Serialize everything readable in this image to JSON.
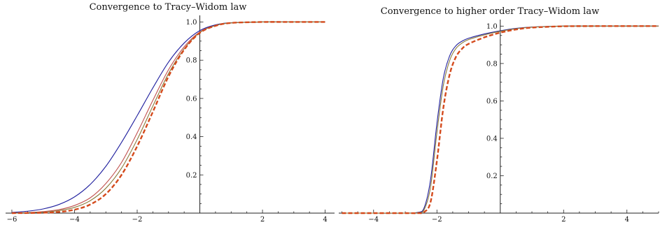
{
  "chart_data": [
    {
      "type": "line",
      "title": "Convergence to Tracy–Widom law",
      "xlabel": "",
      "ylabel": "",
      "xlim": [
        -6.2,
        4.3
      ],
      "ylim": [
        0,
        1.02
      ],
      "x_ticks": [
        -6,
        -4,
        -2,
        2,
        4
      ],
      "x_tick_labels": [
        "−6",
        "−4",
        "−2",
        "2",
        "4"
      ],
      "y_ticks": [
        0.2,
        0.4,
        0.6,
        0.8,
        1.0
      ],
      "y_tick_labels": [
        "0.2",
        "0.4",
        "0.6",
        "0.8",
        "1.0"
      ],
      "grid": false,
      "x": [
        -6.0,
        -5.5,
        -5.0,
        -4.5,
        -4.0,
        -3.5,
        -3.0,
        -2.5,
        -2.0,
        -1.5,
        -1.0,
        -0.5,
        0.0,
        0.5,
        1.0,
        2.0,
        3.0,
        4.0
      ],
      "series": [
        {
          "color": "#1f1f9e",
          "dashed": false,
          "values": [
            0.004,
            0.01,
            0.022,
            0.045,
            0.085,
            0.15,
            0.245,
            0.37,
            0.51,
            0.655,
            0.79,
            0.89,
            0.955,
            0.985,
            0.996,
            1.0,
            1.0,
            1.0
          ]
        },
        {
          "color": "#c0504d",
          "dashed": false,
          "values": [
            0.001,
            0.003,
            0.008,
            0.018,
            0.04,
            0.08,
            0.155,
            0.265,
            0.42,
            0.59,
            0.75,
            0.87,
            0.948,
            0.982,
            0.995,
            1.0,
            1.0,
            1.0
          ]
        },
        {
          "color": "#8a7a3a",
          "dashed": false,
          "values": [
            0.0008,
            0.002,
            0.005,
            0.013,
            0.03,
            0.065,
            0.13,
            0.235,
            0.385,
            0.56,
            0.73,
            0.86,
            0.945,
            0.981,
            0.995,
            1.0,
            1.0,
            1.0
          ]
        },
        {
          "color": "#d44a1c",
          "dashed": true,
          "values": [
            0.0,
            0.0005,
            0.002,
            0.006,
            0.018,
            0.045,
            0.1,
            0.2,
            0.35,
            0.53,
            0.715,
            0.855,
            0.943,
            0.98,
            0.995,
            1.0,
            1.0,
            1.0
          ]
        }
      ]
    },
    {
      "type": "line",
      "title": "Convergence to higher order Tracy–Widom law",
      "xlabel": "",
      "ylabel": "",
      "xlim": [
        -5.1,
        5.0
      ],
      "ylim": [
        0,
        1.02
      ],
      "x_ticks": [
        -4,
        -2,
        2,
        4
      ],
      "x_tick_labels": [
        "−4",
        "−2",
        "2",
        "4"
      ],
      "y_ticks": [
        0.2,
        0.4,
        0.6,
        0.8,
        1.0
      ],
      "y_tick_labels": [
        "0.2",
        "0.4",
        "0.6",
        "0.8",
        "1.0"
      ],
      "grid": false,
      "x": [
        -5.0,
        -4.0,
        -3.0,
        -2.6,
        -2.4,
        -2.2,
        -2.0,
        -1.8,
        -1.6,
        -1.4,
        -1.2,
        -1.0,
        -0.5,
        0.0,
        0.5,
        1.0,
        2.0,
        3.0,
        4.0,
        5.0
      ],
      "series": [
        {
          "color": "#1f1f9e",
          "dashed": false,
          "values": [
            0.0,
            0.0,
            0.0,
            0.004,
            0.03,
            0.18,
            0.48,
            0.72,
            0.84,
            0.895,
            0.92,
            0.935,
            0.958,
            0.975,
            0.988,
            0.995,
            1.0,
            1.0,
            1.0,
            1.0
          ]
        },
        {
          "color": "#8a7a3a",
          "dashed": false,
          "values": [
            0.0,
            0.0,
            0.0,
            0.002,
            0.02,
            0.14,
            0.43,
            0.68,
            0.815,
            0.88,
            0.91,
            0.928,
            0.953,
            0.972,
            0.986,
            0.994,
            1.0,
            1.0,
            1.0,
            1.0
          ]
        },
        {
          "color": "#d44a1c",
          "dashed": true,
          "values": [
            0.0,
            0.0,
            0.0,
            0.0,
            0.006,
            0.06,
            0.28,
            0.56,
            0.74,
            0.835,
            0.88,
            0.905,
            0.94,
            0.965,
            0.982,
            0.992,
            0.999,
            1.0,
            1.0,
            1.0
          ]
        }
      ]
    }
  ]
}
